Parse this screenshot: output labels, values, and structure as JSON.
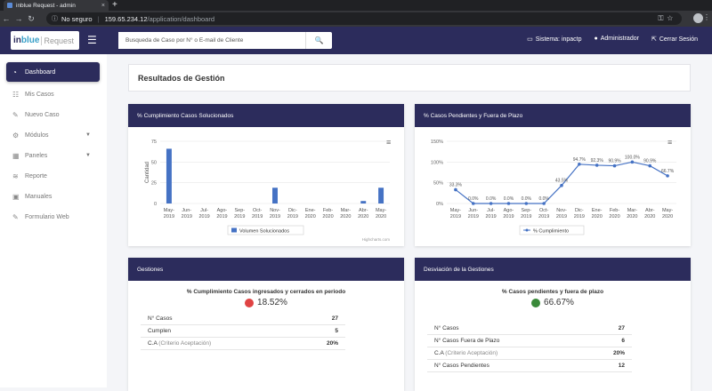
{
  "browser": {
    "tab_title": "inblue Request - admin",
    "security": "No seguro",
    "host": "159.65.234.12",
    "path": "/application/dashboard"
  },
  "header": {
    "logo_in": "in",
    "logo_blue": "blue",
    "logo_request": "Request",
    "search_placeholder": "Busqueda de Caso por N° o E-mail de Cliente",
    "system_label": "Sistema: inpactp",
    "admin_label": "Administrador",
    "logout_label": "Cerrar Sesión"
  },
  "sidebar": {
    "items": [
      {
        "label": "Dashboard"
      },
      {
        "label": "Mis Casos"
      },
      {
        "label": "Nuevo Caso"
      },
      {
        "label": "Módulos"
      },
      {
        "label": "Paneles"
      },
      {
        "label": "Reporte"
      },
      {
        "label": "Manuales"
      },
      {
        "label": "Formulario Web"
      }
    ]
  },
  "main": {
    "title": "Resultados de Gestión"
  },
  "chart_left": {
    "header": "% Cumplimiento Casos Solucionados",
    "credit": "Highcharts.com"
  },
  "chart_right": {
    "header": "% Casos Pendientes y Fuera de Plazo"
  },
  "chart_data": [
    {
      "type": "bar",
      "title": "",
      "ylabel": "Cantidad",
      "ylim": [
        0,
        75
      ],
      "yticks": [
        0,
        25,
        50,
        75
      ],
      "categories": [
        "May-2019",
        "Jun-2019",
        "Jul-2019",
        "Ago-2019",
        "Sep-2019",
        "Oct-2019",
        "Nov-2019",
        "Dic-2019",
        "Ene-2020",
        "Feb-2020",
        "Mar-2020",
        "Abr-2020",
        "May-2020"
      ],
      "series": [
        {
          "name": "Volumen Solucionados",
          "color": "#4572c4",
          "values": [
            66,
            0,
            0,
            0,
            0,
            0,
            19,
            0,
            0,
            0,
            0,
            3,
            19
          ]
        }
      ],
      "legend": "bottom"
    },
    {
      "type": "line",
      "title": "",
      "ylim": [
        0,
        150
      ],
      "yticks": [
        "0%",
        "50%",
        "100%",
        "150%"
      ],
      "categories": [
        "May-2019",
        "Jun-2019",
        "Jul-2019",
        "Ago-2019",
        "Sep-2019",
        "Oct-2019",
        "Nov-2019",
        "Dic-2019",
        "Ene-2020",
        "Feb-2020",
        "Mar-2020",
        "Abr-2020",
        "May-2020"
      ],
      "series": [
        {
          "name": "% Cumplimiento",
          "color": "#4572c4",
          "values": [
            33.3,
            0,
            0,
            0,
            0,
            0,
            43.5,
            94.7,
            92.3,
            90.9,
            100,
            90.9,
            66.7
          ],
          "labels": [
            "33.3%",
            "0.0%",
            "0.0%",
            "0.0%",
            "0.0%",
            "0.0%",
            "43.5%",
            "94.7%",
            "92.3%",
            "90.9%",
            "100.0%",
            "90.9%",
            "66.7%"
          ]
        }
      ],
      "legend": "bottom"
    }
  ],
  "gestiones": {
    "header": "Gestiones",
    "subtitle": "% Cumplimiento Casos ingresados y cerrados en periodo",
    "pct": "18.52%",
    "dot_color": "#e04343",
    "rows": [
      {
        "label": "N° Casos",
        "sub": "",
        "value": "27"
      },
      {
        "label": "Cumplen",
        "sub": "",
        "value": "5"
      },
      {
        "label": "C.A",
        "sub": "(Criterio Aceptación)",
        "value": "20%"
      }
    ]
  },
  "desviacion": {
    "header": "Desviación de la Gestiones",
    "subtitle": "% Casos pendientes y fuera de plazo",
    "pct": "66.67%",
    "dot_color": "#3a8a3a",
    "rows": [
      {
        "label": "N° Casos",
        "sub": "",
        "value": "27"
      },
      {
        "label": "N° Casos Fuera de Plazo",
        "sub": "",
        "value": "6"
      },
      {
        "label": "C.A",
        "sub": "(Criterio Aceptación)",
        "value": "20%"
      },
      {
        "label": "N° Casos Pendientes",
        "sub": "",
        "value": "12"
      }
    ]
  }
}
